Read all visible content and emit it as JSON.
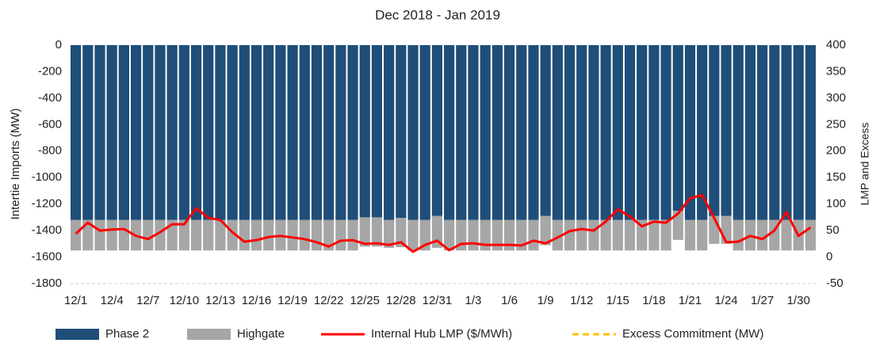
{
  "chart_data": {
    "type": "bar",
    "stacked": true,
    "title": "Dec 2018 - Jan 2019",
    "ylabel": "Intertie Imports (MW)",
    "y2label": "LMP and Excess",
    "categories": [
      "12/1",
      null,
      null,
      "12/4",
      null,
      null,
      "12/7",
      null,
      null,
      "12/10",
      null,
      null,
      "12/13",
      null,
      null,
      "12/16",
      null,
      null,
      "12/19",
      null,
      null,
      "12/22",
      null,
      null,
      "12/25",
      null,
      null,
      "12/28",
      null,
      null,
      "12/31",
      null,
      null,
      "1/3",
      null,
      null,
      "1/6",
      null,
      null,
      "1/9",
      null,
      null,
      "1/12",
      null,
      null,
      "1/15",
      null,
      null,
      "1/18",
      null,
      null,
      "1/21",
      null,
      null,
      "1/24",
      null,
      null,
      "1/27",
      null,
      null,
      "1/30",
      null
    ],
    "ylim": [
      -1800,
      0
    ],
    "yticks": [
      -1800,
      -1600,
      -1400,
      -1200,
      -1000,
      -800,
      -600,
      -400,
      -200,
      0
    ],
    "y2lim": [
      -50,
      400
    ],
    "y2ticks": [
      -50,
      0,
      50,
      100,
      150,
      200,
      250,
      300,
      350,
      400
    ],
    "series": [
      {
        "name": "Phase 2",
        "color": "#1f4e79",
        "kind": "bar",
        "values": [
          -1320,
          -1320,
          -1320,
          -1320,
          -1320,
          -1320,
          -1320,
          -1320,
          -1320,
          -1320,
          -1320,
          -1320,
          -1320,
          -1320,
          -1320,
          -1320,
          -1320,
          -1320,
          -1320,
          -1320,
          -1320,
          -1320,
          -1320,
          -1320,
          -1300,
          -1300,
          -1320,
          -1305,
          -1320,
          -1320,
          -1290,
          -1320,
          -1320,
          -1320,
          -1320,
          -1320,
          -1320,
          -1320,
          -1320,
          -1290,
          -1320,
          -1320,
          -1320,
          -1320,
          -1320,
          -1320,
          -1320,
          -1320,
          -1320,
          -1320,
          -1250,
          -1320,
          -1320,
          -1290,
          -1290,
          -1320,
          -1320,
          -1320,
          -1320,
          -1320,
          -1320,
          -1320
        ]
      },
      {
        "name": "Highgate",
        "color": "#a6a6a6",
        "kind": "bar",
        "values": [
          -230,
          -230,
          -230,
          -230,
          -230,
          -230,
          -230,
          -230,
          -230,
          -230,
          -230,
          -230,
          -230,
          -230,
          -230,
          -230,
          -230,
          -230,
          -230,
          -230,
          -230,
          -230,
          -230,
          -230,
          -220,
          -220,
          -210,
          -220,
          -230,
          -230,
          -240,
          -230,
          -230,
          -230,
          -230,
          -230,
          -230,
          -230,
          -230,
          -220,
          -230,
          -230,
          -230,
          -230,
          -230,
          -230,
          -230,
          -230,
          -230,
          -230,
          -220,
          -230,
          -230,
          -210,
          -210,
          -230,
          -230,
          -230,
          -230,
          -230,
          -230,
          -230
        ]
      },
      {
        "name": "Internal Hub LMP ($/MWh)",
        "color": "#ff0000",
        "kind": "line",
        "axis": "y2",
        "values": [
          44,
          65,
          50,
          52,
          53,
          40,
          34,
          47,
          62,
          62,
          92,
          74,
          70,
          47,
          29,
          32,
          38,
          40,
          37,
          34,
          28,
          20,
          31,
          32,
          25,
          26,
          23,
          28,
          10,
          23,
          31,
          13,
          25,
          26,
          23,
          23,
          23,
          22,
          31,
          26,
          37,
          49,
          53,
          50,
          67,
          90,
          77,
          58,
          67,
          65,
          82,
          111,
          117,
          74,
          28,
          29,
          40,
          34,
          50,
          85,
          40,
          56
        ]
      },
      {
        "name": "Excess Commitment (MW)",
        "color": "#ffc000",
        "kind": "dashed-line",
        "axis": "y2",
        "values": [
          null,
          null,
          null,
          null,
          null,
          null,
          null,
          null,
          null,
          null,
          null,
          null,
          null,
          null,
          null,
          null,
          null,
          null,
          null,
          null,
          null,
          null,
          null,
          null,
          null,
          null,
          null,
          null,
          null,
          null,
          null,
          null,
          null,
          null,
          null,
          null,
          null,
          null,
          null,
          null,
          null,
          null,
          null,
          null,
          null,
          null,
          null,
          null,
          null,
          null,
          null,
          null,
          null,
          null,
          null,
          null,
          null,
          null,
          null,
          null,
          null,
          null
        ]
      }
    ]
  }
}
